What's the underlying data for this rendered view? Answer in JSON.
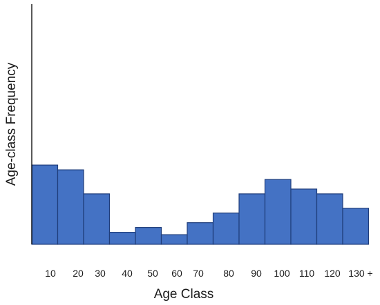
{
  "chart_data": {
    "type": "bar",
    "title": "",
    "xlabel": "Age Class",
    "ylabel": "Age-class Frequency",
    "bar_color": "#4472c4",
    "bar_edge_color": "#1f3d7a",
    "axis_color": "#000000",
    "grid": false,
    "legend": "none",
    "yticks": "none",
    "ylim": [
      0,
      100
    ],
    "x_tick_labels": [
      "10",
      "20",
      "30",
      "40",
      "50",
      "60",
      "70",
      "80",
      "90",
      "100",
      "110",
      "120",
      "130 +"
    ],
    "values": [
      33,
      31,
      21,
      5,
      7,
      4,
      9,
      13,
      21,
      27,
      23,
      21,
      15
    ]
  }
}
